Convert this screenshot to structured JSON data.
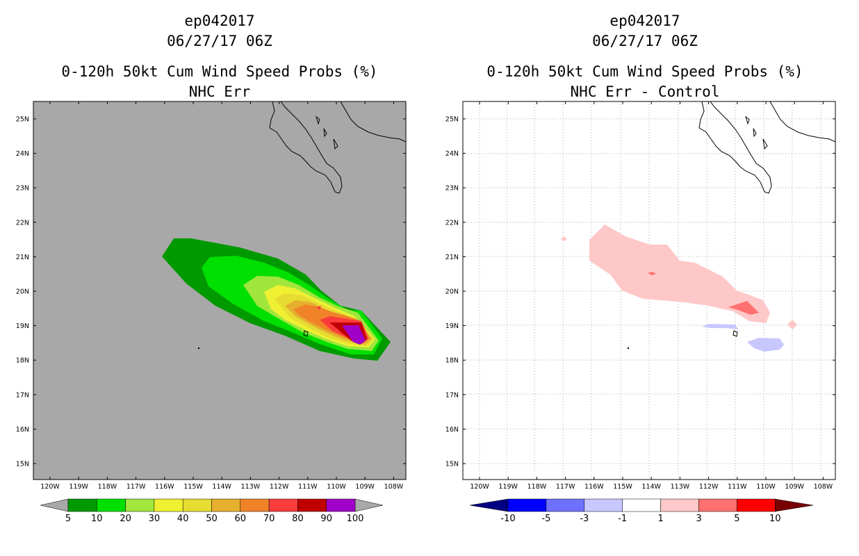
{
  "left": {
    "title_line1": "ep042017",
    "title_line2": "06/27/17 06Z",
    "title_line3": "0-120h 50kt Cum Wind Speed Probs (%)",
    "title_line4": "NHC Err",
    "background": "#a8a8a8",
    "colorbar": {
      "labels": [
        "5",
        "10",
        "20",
        "30",
        "40",
        "50",
        "60",
        "70",
        "80",
        "90",
        "100"
      ],
      "colors": [
        "#009a00",
        "#00e000",
        "#a0e63c",
        "#f0f032",
        "#e6dc32",
        "#e6af2e",
        "#f08228",
        "#fa3c3c",
        "#c00000",
        "#a000c8"
      ],
      "end_arrow_color": "#a8a8a8"
    }
  },
  "right": {
    "title_line1": "ep042017",
    "title_line2": "06/27/17 06Z",
    "title_line3": "0-120h 50kt Cum Wind Speed Probs (%)",
    "title_line4": "NHC Err - Control",
    "background": "#ffffff",
    "colorbar": {
      "labels": [
        "-10",
        "-5",
        "-3",
        "-1",
        "1",
        "3",
        "5",
        "10"
      ],
      "colors": [
        "#0000a0",
        "#0000ff",
        "#7070ff",
        "#c8c8ff",
        "#ffffff",
        "#ffc8c8",
        "#ff7070",
        "#ff0000",
        "#a00000"
      ],
      "end_arrow_color_left": "#000080",
      "end_arrow_color_right": "#780000"
    }
  },
  "axes": {
    "lat_labels": [
      "25N",
      "24N",
      "23N",
      "22N",
      "21N",
      "20N",
      "19N",
      "18N",
      "17N",
      "16N",
      "15N"
    ],
    "lon_labels": [
      "120W",
      "119W",
      "118W",
      "117W",
      "116W",
      "115W",
      "114W",
      "113W",
      "112W",
      "111W",
      "110W",
      "109W",
      "108W"
    ]
  }
}
